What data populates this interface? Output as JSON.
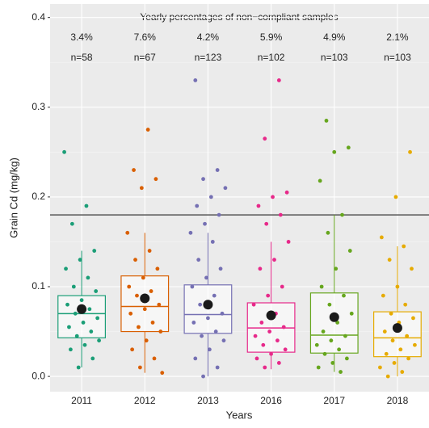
{
  "chart_data": {
    "type": "boxplot",
    "annotation": "Yearly percentages of non−compliant samples",
    "x_label": "Years",
    "y_label": "Grain Cd (mg/kg)",
    "categories": [
      "2011",
      "2012",
      "2013",
      "2016",
      "2017",
      "2018"
    ],
    "percent_labels": [
      "3.4%",
      "7.6%",
      "4.2%",
      "5.9%",
      "4.9%",
      "2.1%"
    ],
    "n_labels": [
      "n=58",
      "n=67",
      "n=123",
      "n=102",
      "n=103",
      "n=103"
    ],
    "ylim": [
      -0.017,
      0.415
    ],
    "yticks": [
      {
        "value": 0,
        "label": "0.0"
      },
      0.1,
      0.2,
      0.3,
      0.4
    ],
    "grid": true,
    "hline": {
      "value": 0.18,
      "color": "#555555"
    },
    "boxes": [
      {
        "color": "#1b9e77",
        "low": 0.01,
        "q1": 0.043,
        "median": 0.07,
        "q3": 0.09,
        "high": 0.14,
        "mean": 0.075,
        "points": [
          0.25,
          0.19,
          0.17,
          0.14,
          0.13,
          0.12,
          0.11,
          0.1,
          0.095,
          0.085,
          0.08,
          0.075,
          0.07,
          0.065,
          0.06,
          0.055,
          0.05,
          0.045,
          0.04,
          0.035,
          0.03,
          0.02,
          0.01
        ]
      },
      {
        "color": "#d95f02",
        "low": 0.004,
        "q1": 0.05,
        "median": 0.078,
        "q3": 0.112,
        "high": 0.16,
        "mean": 0.087,
        "points": [
          0.275,
          0.23,
          0.22,
          0.21,
          0.16,
          0.14,
          0.13,
          0.12,
          0.11,
          0.1,
          0.095,
          0.09,
          0.08,
          0.075,
          0.07,
          0.06,
          0.055,
          0.05,
          0.04,
          0.03,
          0.02,
          0.01,
          0.004
        ]
      },
      {
        "color": "#7570b3",
        "low": 0.0,
        "q1": 0.048,
        "median": 0.069,
        "q3": 0.102,
        "high": 0.16,
        "mean": 0.08,
        "points": [
          0.33,
          0.23,
          0.22,
          0.21,
          0.2,
          0.19,
          0.18,
          0.17,
          0.16,
          0.15,
          0.13,
          0.12,
          0.11,
          0.1,
          0.09,
          0.08,
          0.07,
          0.065,
          0.06,
          0.05,
          0.045,
          0.04,
          0.03,
          0.02,
          0.01,
          0.0
        ]
      },
      {
        "color": "#e7298a",
        "low": 0.008,
        "q1": 0.027,
        "median": 0.054,
        "q3": 0.082,
        "high": 0.15,
        "mean": 0.068,
        "points": [
          0.33,
          0.265,
          0.205,
          0.2,
          0.19,
          0.18,
          0.17,
          0.15,
          0.13,
          0.12,
          0.1,
          0.09,
          0.08,
          0.07,
          0.06,
          0.055,
          0.05,
          0.045,
          0.04,
          0.035,
          0.03,
          0.025,
          0.02,
          0.015,
          0.01
        ]
      },
      {
        "color": "#66a61e",
        "low": 0.005,
        "q1": 0.026,
        "median": 0.046,
        "q3": 0.093,
        "high": 0.18,
        "mean": 0.066,
        "points": [
          0.285,
          0.255,
          0.25,
          0.218,
          0.18,
          0.16,
          0.14,
          0.12,
          0.1,
          0.09,
          0.08,
          0.07,
          0.06,
          0.05,
          0.045,
          0.04,
          0.035,
          0.03,
          0.025,
          0.02,
          0.015,
          0.01,
          0.005
        ]
      },
      {
        "color": "#e6ab02",
        "low": 0.0,
        "q1": 0.022,
        "median": 0.043,
        "q3": 0.072,
        "high": 0.145,
        "mean": 0.054,
        "points": [
          0.25,
          0.2,
          0.155,
          0.145,
          0.13,
          0.12,
          0.1,
          0.09,
          0.08,
          0.07,
          0.065,
          0.06,
          0.05,
          0.045,
          0.04,
          0.035,
          0.03,
          0.025,
          0.02,
          0.015,
          0.01,
          0.005,
          0.0
        ]
      }
    ]
  }
}
